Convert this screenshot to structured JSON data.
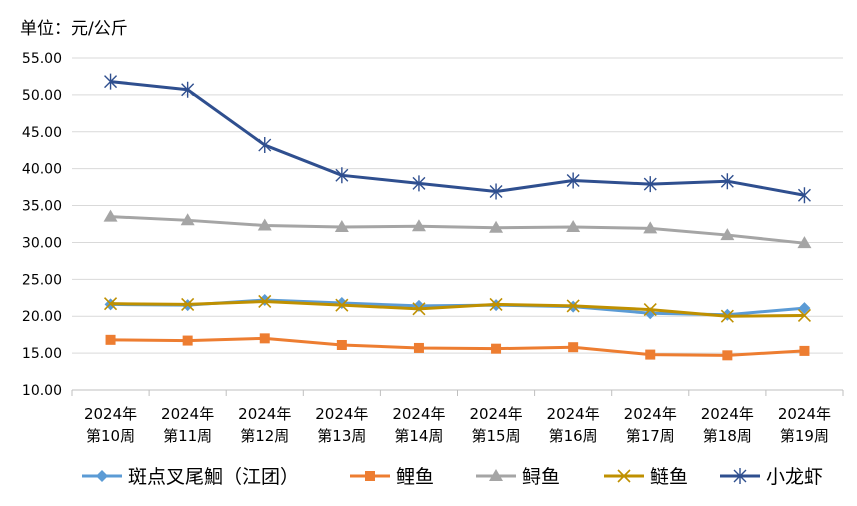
{
  "chart_data": {
    "type": "line",
    "unit_label": "单位：元/公斤",
    "categories": [
      [
        "2024年",
        "第10周"
      ],
      [
        "2024年",
        "第11周"
      ],
      [
        "2024年",
        "第12周"
      ],
      [
        "2024年",
        "第13周"
      ],
      [
        "2024年",
        "第14周"
      ],
      [
        "2024年",
        "第15周"
      ],
      [
        "2024年",
        "第16周"
      ],
      [
        "2024年",
        "第17周"
      ],
      [
        "2024年",
        "第18周"
      ],
      [
        "2024年",
        "第19周"
      ]
    ],
    "ylim": [
      10,
      55
    ],
    "yticks": [
      "10.00",
      "15.00",
      "20.00",
      "25.00",
      "30.00",
      "35.00",
      "40.00",
      "45.00",
      "50.00",
      "55.00"
    ],
    "grid": true,
    "legend_position": "bottom",
    "series": [
      {
        "name": "斑点叉尾鮰（江团）",
        "color": "#5B9BD5",
        "marker": "diamond",
        "values": [
          21.6,
          21.5,
          22.2,
          21.8,
          21.4,
          21.5,
          21.3,
          20.4,
          20.2,
          21.1
        ]
      },
      {
        "name": "鲤鱼",
        "color": "#ED7D31",
        "marker": "square",
        "values": [
          16.8,
          16.7,
          17.0,
          16.1,
          15.7,
          15.6,
          15.8,
          14.8,
          14.7,
          15.3
        ]
      },
      {
        "name": "鲟鱼",
        "color": "#A5A5A5",
        "marker": "triangle",
        "values": [
          33.5,
          33.0,
          32.3,
          32.1,
          32.2,
          32.0,
          32.1,
          31.9,
          31.0,
          29.9
        ]
      },
      {
        "name": "鲢鱼",
        "color": "#BF9000",
        "marker": "x",
        "values": [
          21.7,
          21.6,
          22.0,
          21.5,
          21.0,
          21.6,
          21.4,
          20.9,
          20.0,
          20.1
        ]
      },
      {
        "name": "小龙虾",
        "color": "#2F4F8F",
        "marker": "asterisk",
        "values": [
          51.8,
          50.7,
          43.2,
          39.1,
          38.0,
          36.9,
          38.4,
          37.9,
          38.3,
          36.4
        ]
      }
    ]
  }
}
